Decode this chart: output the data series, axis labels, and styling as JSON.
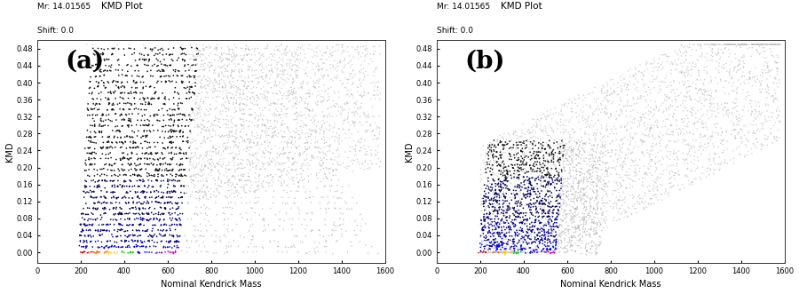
{
  "title_text": "KMD Plot",
  "mr_label": "Mr: 14.01565",
  "shift_label": "Shift: 0.0",
  "xlabel": "Nominal Kendrick Mass",
  "ylabel": "KMD",
  "xlim": [
    0,
    1600
  ],
  "ylim": [
    -0.025,
    0.5
  ],
  "yticks": [
    0.0,
    0.04,
    0.08,
    0.12,
    0.16,
    0.2,
    0.24,
    0.28,
    0.32,
    0.36,
    0.4,
    0.44,
    0.48
  ],
  "xticks": [
    0,
    200,
    400,
    600,
    800,
    1000,
    1200,
    1400,
    1600
  ],
  "panel_a_label": "(a)",
  "panel_b_label": "(b)",
  "background_color": "#ffffff"
}
